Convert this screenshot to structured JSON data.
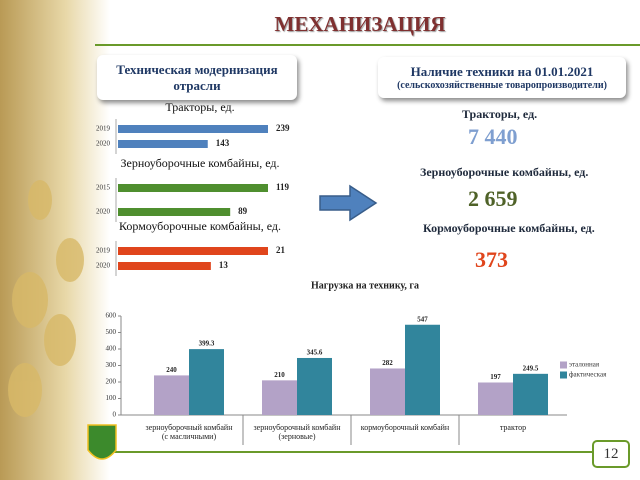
{
  "slide": {
    "title": "МЕХАНИЗАЦИЯ",
    "left_box": "Техническая модернизация отрасли",
    "right_box": {
      "title": "Наличие техники на 01.01.2021",
      "subtitle": "(сельскохозяйственные товаропроизводители)"
    },
    "stats": [
      {
        "label": "Тракторы, ед.",
        "value": "7 440",
        "color": "#7f9fd0"
      },
      {
        "label": "Зерноуборочные комбайны, ед.",
        "value": "2 659",
        "color": "#4f6228"
      },
      {
        "label": "Кормоуборочные комбайны, ед.",
        "value": "373",
        "color": "#e0451c"
      }
    ],
    "page_number": "12"
  },
  "chart_data": [
    {
      "type": "hbar",
      "title": "Тракторы, ед.",
      "categories": [
        "2019",
        "2020"
      ],
      "values": [
        239,
        143
      ],
      "color": "#4f81bd"
    },
    {
      "type": "hbar",
      "title": "Зерноуборочные комбайны, ед.",
      "categories": [
        "2015",
        "2020"
      ],
      "values": [
        119,
        89
      ],
      "color": "#4f8f2f"
    },
    {
      "type": "hbar",
      "title": "Кормоуборочные комбайны, ед.",
      "categories": [
        "2019",
        "2020"
      ],
      "values": [
        21,
        13
      ],
      "color": "#e0451c"
    },
    {
      "type": "bar",
      "title": "Нагрузка на технику, га",
      "categories": [
        "зерноуборочный комбайн\n(с масличными)",
        "зерноуборочный комбайн\n(зерновые)",
        "кормоуборочный комбайн",
        "трактор"
      ],
      "series": [
        {
          "name": "эталонная",
          "color": "#b3a2c7",
          "values": [
            240,
            210,
            282,
            197
          ]
        },
        {
          "name": "фактическая",
          "color": "#31859c",
          "values": [
            399.3,
            345.6,
            547,
            249.5
          ]
        }
      ],
      "ylim": [
        0,
        600
      ],
      "yticks": [
        0,
        100,
        200,
        300,
        400,
        500,
        600
      ],
      "legend": "right"
    }
  ]
}
